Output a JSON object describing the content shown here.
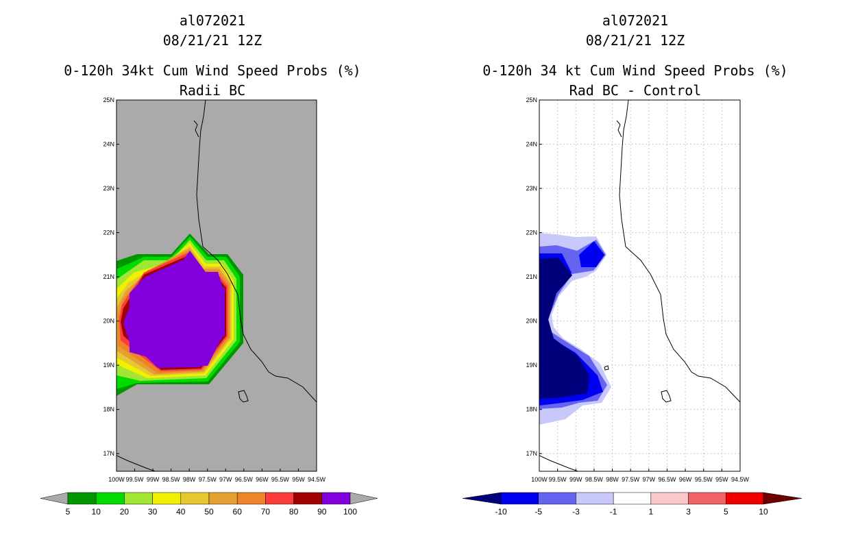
{
  "chart_data": [
    {
      "type": "heatmap",
      "storm_id": "al072021",
      "date": "08/21/21 12Z",
      "title": "0-120h 34kt Cum Wind Speed Probs (%)",
      "subtitle": "Radii BC",
      "xlim": [
        -100,
        -94.5
      ],
      "ylim": [
        16.6,
        25
      ],
      "x_ticks": [
        "100W",
        "99.5W",
        "99W",
        "98.5W",
        "98W",
        "97.5W",
        "97W",
        "96.5W",
        "96W",
        "95.5W",
        "95W",
        "94.5W"
      ],
      "y_ticks": [
        "17N",
        "18N",
        "19N",
        "20N",
        "21N",
        "22N",
        "23N",
        "24N",
        "25N"
      ],
      "grid": false,
      "background": "#aaaaaa",
      "colorbar": {
        "labels": [
          "5",
          "10",
          "20",
          "30",
          "40",
          "50",
          "60",
          "70",
          "80",
          "90",
          "100"
        ],
        "colors": [
          "#009600",
          "#00dc00",
          "#a0e632",
          "#f0f000",
          "#e6c832",
          "#e6a032",
          "#f08228",
          "#fa3c3c",
          "#a00000",
          "#8200dc"
        ],
        "under_color": "#aaaaaa",
        "over_color": "#aaaaaa"
      },
      "probability_field": {
        "max_value": 100,
        "core_value": 100,
        "core_extent": {
          "lon": [
            -99.7,
            -96.8
          ],
          "lat": [
            18.9,
            21.6
          ]
        },
        "edge_values": [
          90,
          80,
          70,
          60,
          50,
          40,
          30,
          20,
          10,
          5
        ]
      }
    },
    {
      "type": "heatmap",
      "storm_id": "al072021",
      "date": "08/21/21 12Z",
      "title": "0-120h 34 kt Cum Wind Speed Probs (%)",
      "subtitle": "Rad BC - Control",
      "xlim": [
        -100,
        -94.5
      ],
      "ylim": [
        16.6,
        25
      ],
      "x_ticks": [
        "100W",
        "99.5W",
        "99W",
        "98.5W",
        "98W",
        "97.5W",
        "97W",
        "96.5W",
        "96W",
        "95.5W",
        "95W",
        "94.5W"
      ],
      "y_ticks": [
        "17N",
        "18N",
        "19N",
        "20N",
        "21N",
        "22N",
        "23N",
        "24N",
        "25N"
      ],
      "grid": true,
      "background": "#ffffff",
      "colorbar": {
        "labels": [
          "-10",
          "-5",
          "-3",
          "-1",
          "1",
          "3",
          "5",
          "10"
        ],
        "colors": [
          "#0000f0",
          "#6464f0",
          "#c8c8fa",
          "#ffffff",
          "#fac8c8",
          "#f06464",
          "#f00000"
        ],
        "under_color": "#00007a",
        "over_color": "#6e0000"
      },
      "difference_field": {
        "min_value": -10,
        "west_band": {
          "lon": [
            -100,
            -99.3
          ],
          "lat": [
            17.6,
            22.0
          ]
        },
        "north_pocket": {
          "lon": [
            -98.6,
            -98.2
          ],
          "lat": [
            21.2,
            21.8
          ]
        }
      }
    }
  ]
}
